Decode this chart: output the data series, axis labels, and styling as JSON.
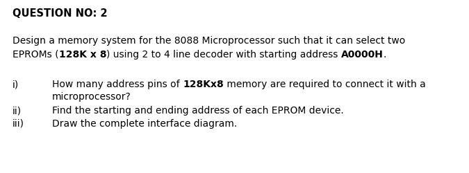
{
  "title": "QUESTION NO: 2",
  "bg_color": "#ffffff",
  "text_color": "#000000",
  "font_size": 10.0,
  "title_font_size": 10.5,
  "line1": "Design a memory system for the 8088 Microprocessor such that it can select two",
  "line2_parts": [
    {
      "text": "EPROMs (",
      "bold": false
    },
    {
      "text": "128K x 8",
      "bold": true
    },
    {
      "text": ") using 2 to 4 line decoder with starting address ",
      "bold": false
    },
    {
      "text": "A0000H",
      "bold": true
    },
    {
      "text": ".",
      "bold": false
    }
  ],
  "item_i_line1_parts": [
    {
      "text": "How many address pins of ",
      "bold": false
    },
    {
      "text": "128Kx8",
      "bold": true
    },
    {
      "text": " memory are required to connect it with a",
      "bold": false
    }
  ],
  "item_i_line2": "microprocessor?",
  "item_ii_text": "Find the starting and ending address of each EPROM device.",
  "item_iii_text": "Draw the complete interface diagram.",
  "label_i": "i)",
  "label_ii": "ii)",
  "label_iii": "iii)"
}
